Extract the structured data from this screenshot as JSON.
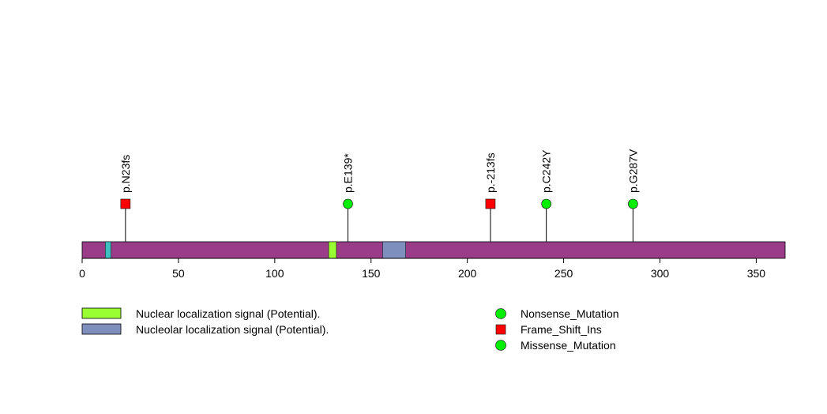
{
  "protein": {
    "length": 365,
    "domains": [
      {
        "name": "",
        "start": 12,
        "end": 15,
        "color": "#3fbfbf"
      },
      {
        "name": "Nuclear localization signal (Potential).",
        "start": 128,
        "end": 132,
        "color": "#99ff33"
      },
      {
        "name": "Nucleolar localization signal (Potential).",
        "start": 156,
        "end": 168,
        "color": "#7e8fbe"
      }
    ],
    "backbone_color": "#9a3c88"
  },
  "axis": {
    "min": 0,
    "max": 365,
    "ticks": [
      "0",
      "50",
      "100",
      "150",
      "200",
      "250",
      "300",
      "350"
    ],
    "tick_values": [
      0,
      50,
      100,
      150,
      200,
      250,
      300,
      350
    ]
  },
  "mutations": [
    {
      "label": "p.N23fs",
      "position": 22.5,
      "type": "Frame_Shift_Ins"
    },
    {
      "label": "p.E139*",
      "position": 138,
      "type": "Nonsense_Mutation"
    },
    {
      "label": "p.-213fs",
      "position": 212,
      "type": "Frame_Shift_Ins"
    },
    {
      "label": "p.C242Y",
      "position": 241,
      "type": "Missense_Mutation"
    },
    {
      "label": "p.G287V",
      "position": 286,
      "type": "Missense_Mutation"
    }
  ],
  "legend_domains": [
    {
      "label": "Nuclear localization signal (Potential).",
      "color": "#99ff33"
    },
    {
      "label": "Nucleolar localization signal (Potential).",
      "color": "#7e8fbe"
    }
  ],
  "legend_mutations": [
    {
      "label": "Nonsense_Mutation",
      "shape": "circle",
      "color": "#00ee00"
    },
    {
      "label": "Frame_Shift_Ins",
      "shape": "square",
      "color": "#ff0000"
    },
    {
      "label": "Missense_Mutation",
      "shape": "circle",
      "color": "#00ee00"
    }
  ]
}
